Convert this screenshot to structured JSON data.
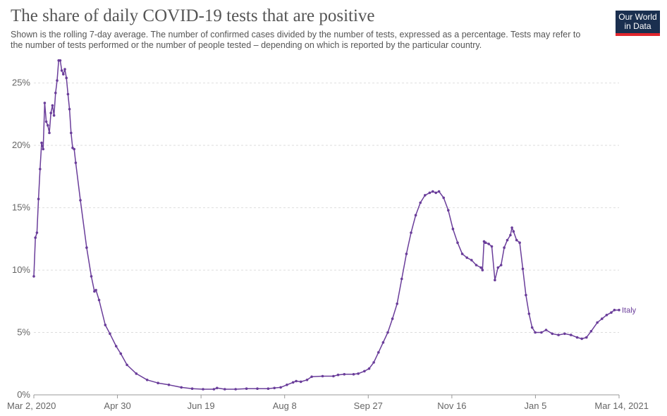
{
  "header": {
    "title": "The share of daily COVID-19 tests that are positive",
    "subtitle": "Shown is the rolling 7-day average. The number of confirmed cases divided by the number of tests, expressed as a percentage. Tests may refer to the number of tests performed or the number of people tested – depending on which is reported by the particular country."
  },
  "logo": {
    "line1": "Our World",
    "line2": "in Data",
    "bg_color": "#1a2f4f",
    "accent_color": "#e1262d"
  },
  "chart_data": {
    "type": "line",
    "x_start": "2020-03-02",
    "x_end": "2021-03-14",
    "xticks": [
      "Mar 2, 2020",
      "Apr 30",
      "Jun 19",
      "Aug 8",
      "Sep 27",
      "Nov 16",
      "Jan 5",
      "Mar 14, 2021"
    ],
    "yticks": [
      "0%",
      "5%",
      "10%",
      "15%",
      "20%",
      "25%"
    ],
    "ylim": [
      0,
      26
    ],
    "grid": true,
    "line_color": "#6a3d9a",
    "series": [
      {
        "name": "Italy",
        "points": [
          [
            "2020-03-02",
            9.5
          ],
          [
            "2020-03-03",
            12.6
          ],
          [
            "2020-03-04",
            13.0
          ],
          [
            "2020-03-05",
            15.7
          ],
          [
            "2020-03-06",
            18.1
          ],
          [
            "2020-03-07",
            20.2
          ],
          [
            "2020-03-08",
            19.7
          ],
          [
            "2020-03-09",
            23.4
          ],
          [
            "2020-03-10",
            21.9
          ],
          [
            "2020-03-11",
            21.6
          ],
          [
            "2020-03-12",
            21.0
          ],
          [
            "2020-03-13",
            22.6
          ],
          [
            "2020-03-14",
            23.2
          ],
          [
            "2020-03-15",
            22.4
          ],
          [
            "2020-03-16",
            24.2
          ],
          [
            "2020-03-17",
            25.2
          ],
          [
            "2020-03-18",
            26.8
          ],
          [
            "2020-03-19",
            26.8
          ],
          [
            "2020-03-20",
            26.0
          ],
          [
            "2020-03-21",
            25.7
          ],
          [
            "2020-03-22",
            26.1
          ],
          [
            "2020-03-23",
            25.4
          ],
          [
            "2020-03-24",
            24.1
          ],
          [
            "2020-03-25",
            22.9
          ],
          [
            "2020-03-26",
            21.0
          ],
          [
            "2020-03-27",
            19.8
          ],
          [
            "2020-03-28",
            19.7
          ],
          [
            "2020-03-29",
            18.6
          ],
          [
            "2020-04-01",
            15.6
          ],
          [
            "2020-04-05",
            11.8
          ],
          [
            "2020-04-08",
            9.5
          ],
          [
            "2020-04-10",
            8.3
          ],
          [
            "2020-04-11",
            8.4
          ],
          [
            "2020-04-13",
            7.6
          ],
          [
            "2020-04-17",
            5.6
          ],
          [
            "2020-04-20",
            4.9
          ],
          [
            "2020-04-24",
            3.9
          ],
          [
            "2020-04-27",
            3.3
          ],
          [
            "2020-05-01",
            2.4
          ],
          [
            "2020-05-07",
            1.7
          ],
          [
            "2020-05-14",
            1.2
          ],
          [
            "2020-05-21",
            0.95
          ],
          [
            "2020-05-28",
            0.8
          ],
          [
            "2020-06-05",
            0.6
          ],
          [
            "2020-06-12",
            0.5
          ],
          [
            "2020-06-19",
            0.45
          ],
          [
            "2020-06-26",
            0.45
          ],
          [
            "2020-06-28",
            0.55
          ],
          [
            "2020-07-03",
            0.45
          ],
          [
            "2020-07-10",
            0.45
          ],
          [
            "2020-07-17",
            0.5
          ],
          [
            "2020-07-24",
            0.5
          ],
          [
            "2020-07-31",
            0.5
          ],
          [
            "2020-08-04",
            0.55
          ],
          [
            "2020-08-08",
            0.6
          ],
          [
            "2020-08-12",
            0.8
          ],
          [
            "2020-08-16",
            1.0
          ],
          [
            "2020-08-18",
            1.1
          ],
          [
            "2020-08-21",
            1.05
          ],
          [
            "2020-08-25",
            1.2
          ],
          [
            "2020-08-28",
            1.45
          ],
          [
            "2020-09-04",
            1.5
          ],
          [
            "2020-09-11",
            1.5
          ],
          [
            "2020-09-14",
            1.6
          ],
          [
            "2020-09-18",
            1.65
          ],
          [
            "2020-09-24",
            1.65
          ],
          [
            "2020-09-27",
            1.7
          ],
          [
            "2020-10-01",
            1.9
          ],
          [
            "2020-10-04",
            2.1
          ],
          [
            "2020-10-07",
            2.6
          ],
          [
            "2020-10-10",
            3.4
          ],
          [
            "2020-10-13",
            4.2
          ],
          [
            "2020-10-16",
            5.0
          ],
          [
            "2020-10-19",
            6.1
          ],
          [
            "2020-10-22",
            7.3
          ],
          [
            "2020-10-25",
            9.3
          ],
          [
            "2020-10-28",
            11.3
          ],
          [
            "2020-10-31",
            13.0
          ],
          [
            "2020-11-03",
            14.4
          ],
          [
            "2020-11-06",
            15.4
          ],
          [
            "2020-11-09",
            16.0
          ],
          [
            "2020-11-12",
            16.2
          ],
          [
            "2020-11-14",
            16.3
          ],
          [
            "2020-11-16",
            16.2
          ],
          [
            "2020-11-18",
            16.3
          ],
          [
            "2020-11-21",
            15.8
          ],
          [
            "2020-11-24",
            14.8
          ],
          [
            "2020-11-27",
            13.3
          ],
          [
            "2020-11-30",
            12.2
          ],
          [
            "2020-12-03",
            11.3
          ],
          [
            "2020-12-06",
            11.0
          ],
          [
            "2020-12-09",
            10.8
          ],
          [
            "2020-12-12",
            10.4
          ],
          [
            "2020-12-15",
            10.2
          ],
          [
            "2020-12-16",
            10.0
          ],
          [
            "2020-12-17",
            12.3
          ],
          [
            "2020-12-18",
            12.2
          ],
          [
            "2020-12-20",
            12.1
          ],
          [
            "2020-12-22",
            11.9
          ],
          [
            "2020-12-24",
            9.2
          ],
          [
            "2020-12-26",
            10.2
          ],
          [
            "2020-12-28",
            10.4
          ],
          [
            "2020-12-30",
            11.8
          ],
          [
            "2021-01-01",
            12.4
          ],
          [
            "2021-01-03",
            12.8
          ],
          [
            "2021-01-04",
            13.4
          ],
          [
            "2021-01-05",
            13.1
          ],
          [
            "2021-01-07",
            12.4
          ],
          [
            "2021-01-09",
            12.2
          ],
          [
            "2021-01-11",
            10.1
          ],
          [
            "2021-01-13",
            8.0
          ],
          [
            "2021-01-15",
            6.5
          ],
          [
            "2021-01-17",
            5.4
          ],
          [
            "2021-01-19",
            5.0
          ],
          [
            "2021-01-23",
            5.0
          ],
          [
            "2021-01-26",
            5.2
          ],
          [
            "2021-01-30",
            4.9
          ],
          [
            "2021-02-03",
            4.8
          ],
          [
            "2021-02-07",
            4.9
          ],
          [
            "2021-02-11",
            4.8
          ],
          [
            "2021-02-15",
            4.6
          ],
          [
            "2021-02-18",
            4.5
          ],
          [
            "2021-02-21",
            4.6
          ],
          [
            "2021-02-24",
            5.1
          ],
          [
            "2021-02-28",
            5.8
          ],
          [
            "2021-03-03",
            6.1
          ],
          [
            "2021-03-06",
            6.4
          ],
          [
            "2021-03-09",
            6.6
          ],
          [
            "2021-03-11",
            6.8
          ],
          [
            "2021-03-14",
            6.8
          ]
        ]
      }
    ]
  }
}
